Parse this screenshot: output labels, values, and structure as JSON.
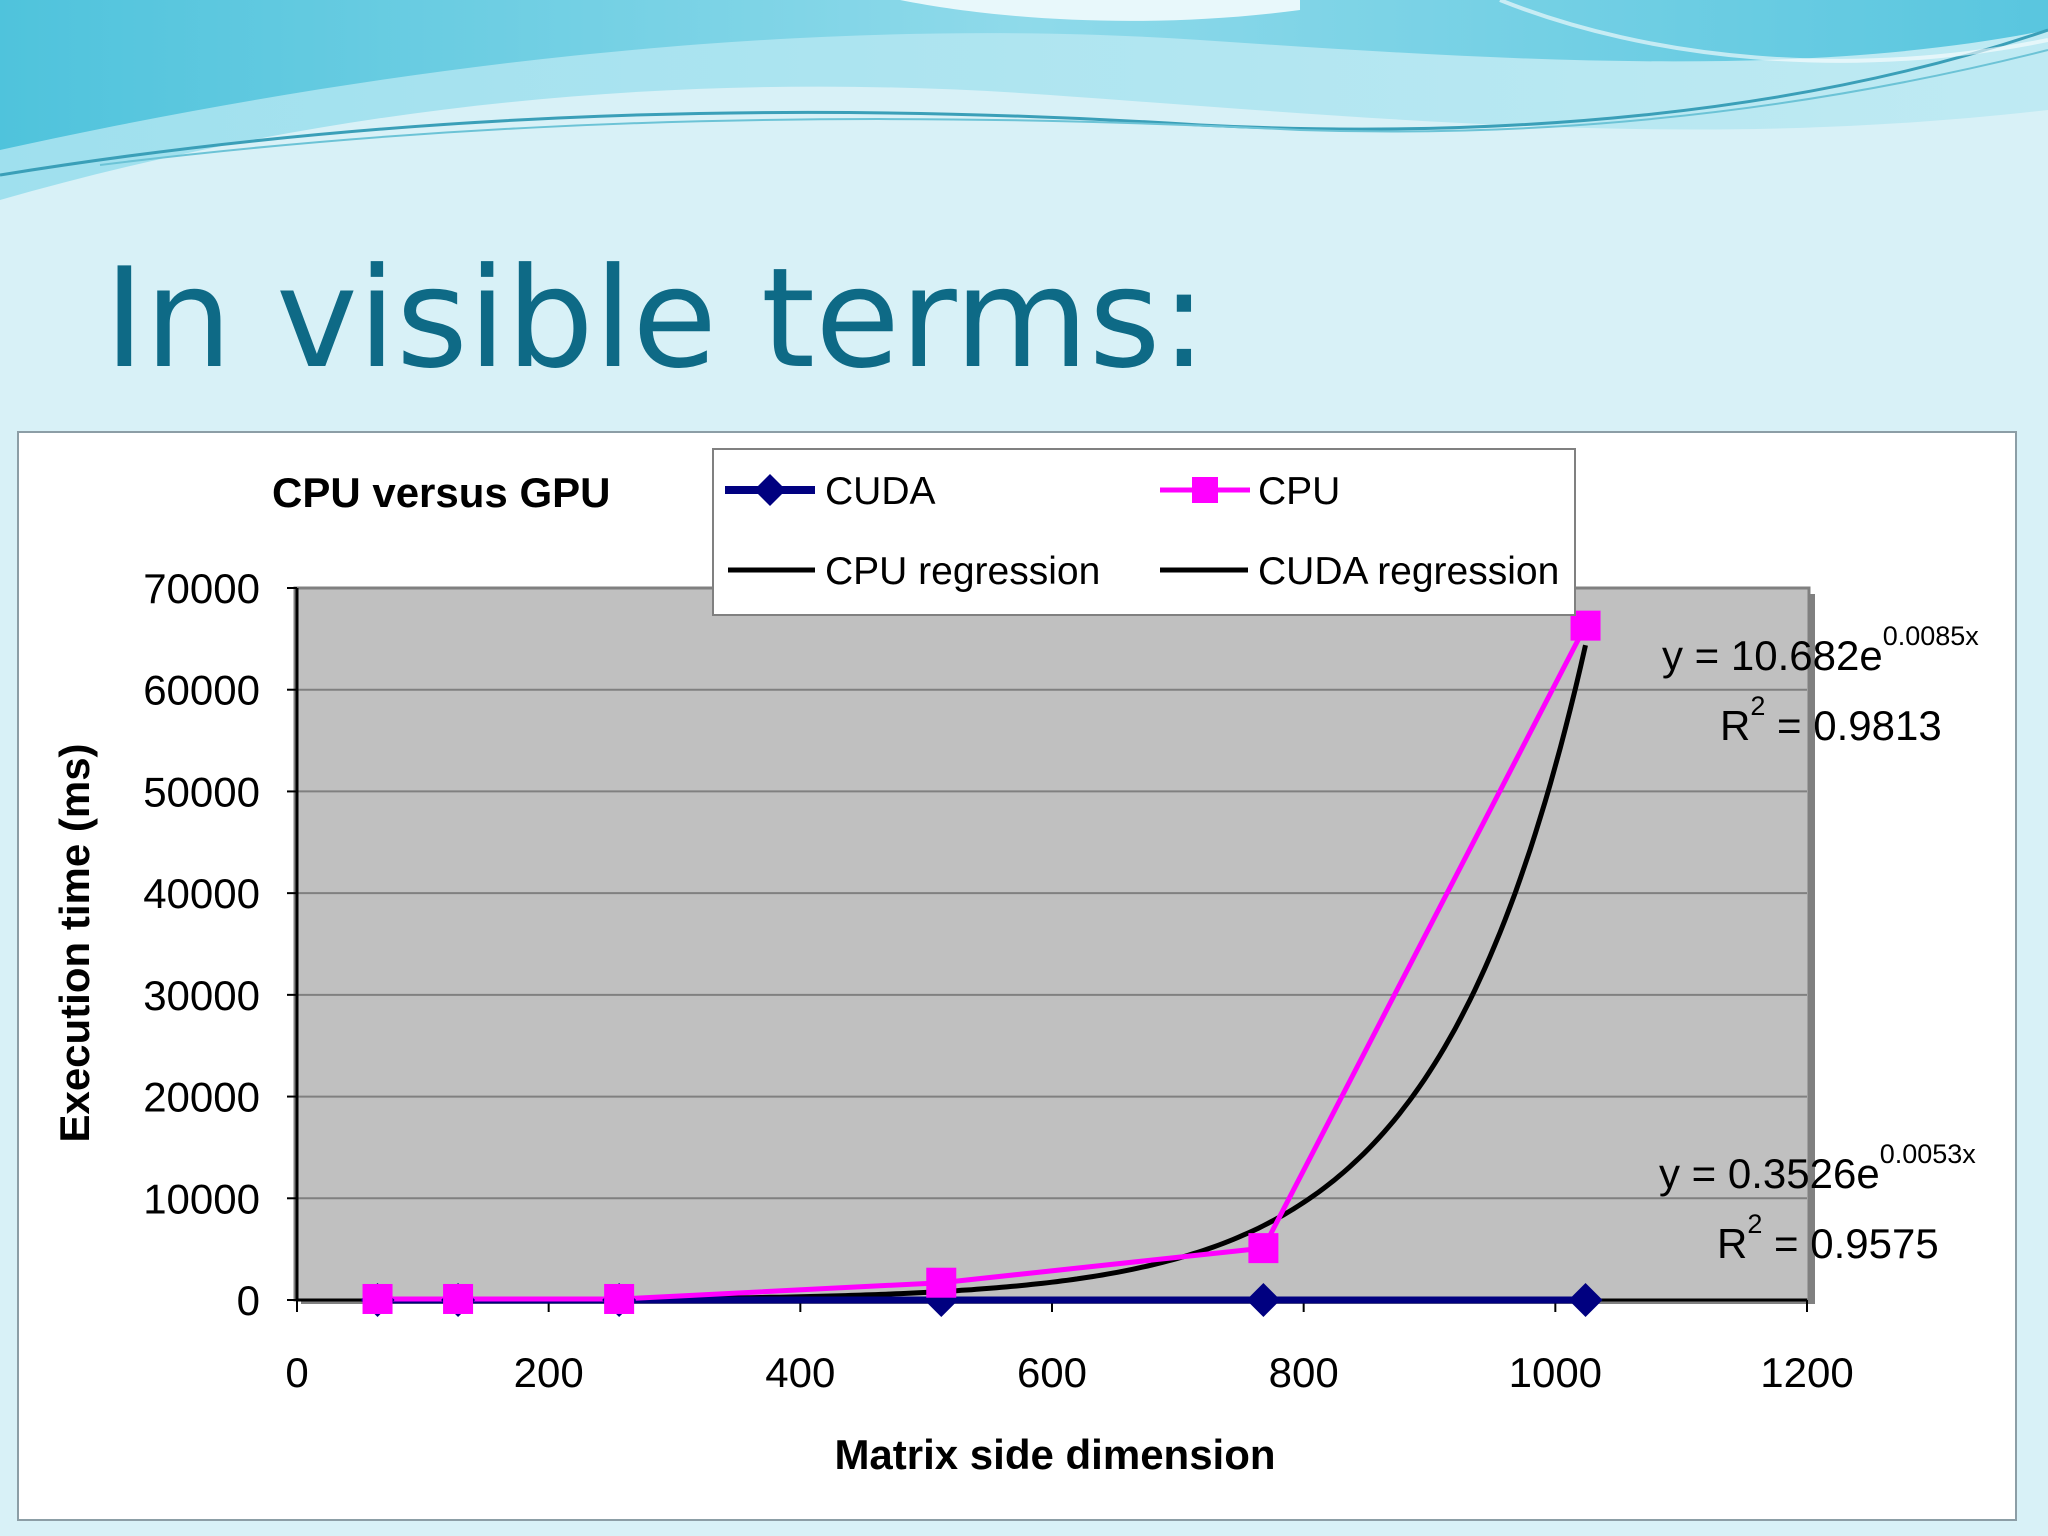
{
  "slide": {
    "title": "In visible terms:"
  },
  "colors": {
    "title": "#0e6a86",
    "plot_background": "#c0c0c0",
    "cuda": "#000080",
    "cpu": "#ff00ff",
    "regression": "#000000"
  },
  "chart_data": {
    "type": "line",
    "title": "CPU versus GPU",
    "xlabel": "Matrix side dimension",
    "ylabel": "Execution time (ms)",
    "xlim": [
      0,
      1200
    ],
    "ylim": [
      0,
      70000
    ],
    "x_ticks": [
      0,
      200,
      400,
      600,
      800,
      1000,
      1200
    ],
    "y_ticks": [
      0,
      10000,
      20000,
      30000,
      40000,
      50000,
      60000,
      70000
    ],
    "grid": "horizontal",
    "legend_position": "top",
    "legend": [
      {
        "key": "cuda",
        "label": "CUDA",
        "marker": "diamond"
      },
      {
        "key": "cpu",
        "label": "CPU",
        "marker": "square"
      },
      {
        "key": "cpu_regression",
        "label": "CPU regression",
        "marker": "none"
      },
      {
        "key": "cuda_regression",
        "label": "CUDA regression",
        "marker": "none"
      }
    ],
    "series": [
      {
        "name": "CUDA",
        "key": "cuda",
        "marker": "diamond",
        "points": [
          [
            64,
            0
          ],
          [
            128,
            0
          ],
          [
            256,
            0
          ],
          [
            512,
            0
          ],
          [
            768,
            0
          ],
          [
            1024,
            0
          ]
        ]
      },
      {
        "name": "CPU",
        "key": "cpu",
        "marker": "square",
        "points": [
          [
            64,
            100
          ],
          [
            128,
            100
          ],
          [
            256,
            100
          ],
          [
            512,
            1700
          ],
          [
            768,
            5100
          ],
          [
            1024,
            66300
          ]
        ]
      }
    ],
    "regressions": [
      {
        "name": "CPU regression",
        "key": "cpu_regression",
        "a": 10.682,
        "b": 0.0085,
        "equation": "y = 10.682e",
        "exponent": "0.0085x",
        "r2_label": "R",
        "r2_power": "2",
        "r2_value": " = 0.9813"
      },
      {
        "name": "CUDA regression",
        "key": "cuda_regression",
        "a": 0.3526,
        "b": 0.0053,
        "equation": "y = 0.3526e",
        "exponent": "0.0053x",
        "r2_label": "R",
        "r2_power": "2",
        "r2_value": " = 0.9575"
      }
    ]
  }
}
